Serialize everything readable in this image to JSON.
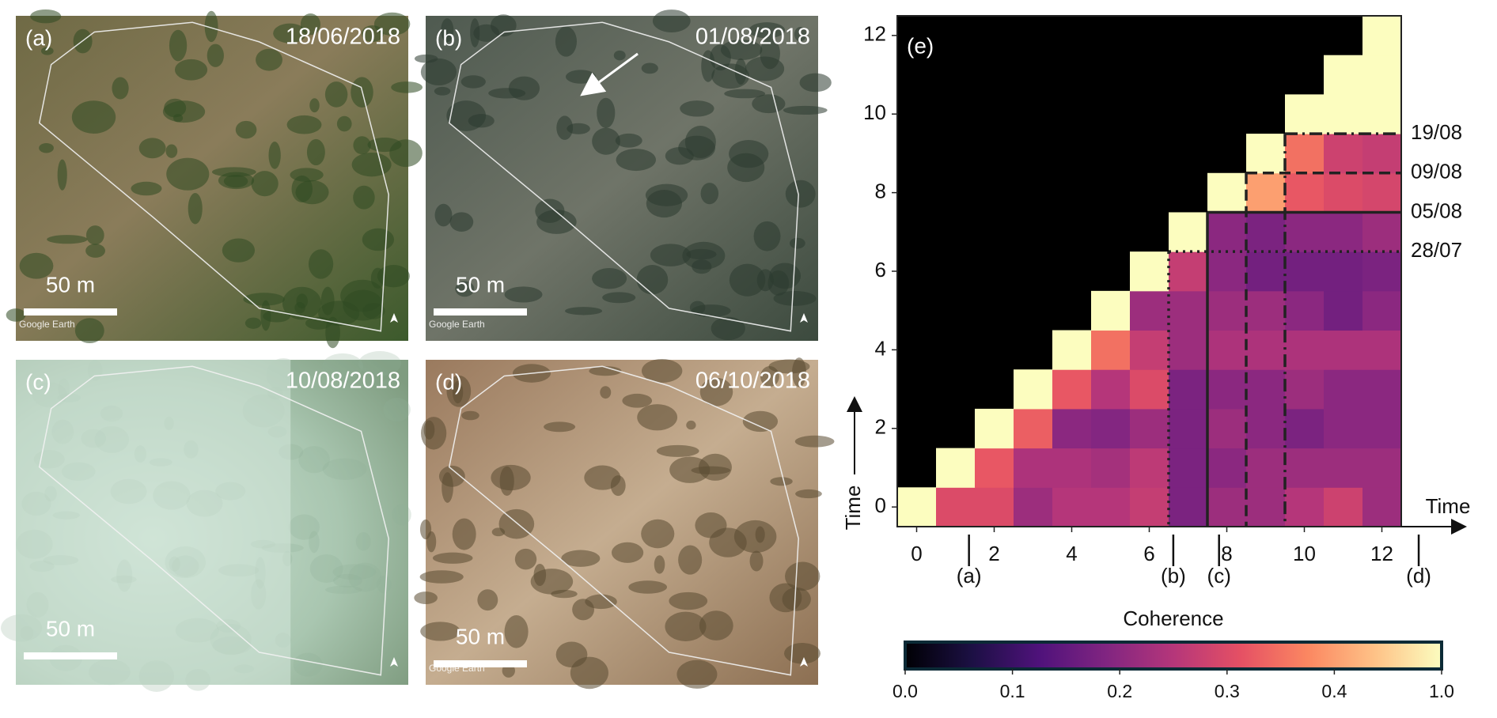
{
  "panels": [
    {
      "label": "(a)",
      "date": "18/06/2018",
      "scale": "50 m",
      "watermark": "Google Earth"
    },
    {
      "label": "(b)",
      "date": "01/08/2018",
      "scale": "50 m",
      "watermark": "Google Earth"
    },
    {
      "label": "(c)",
      "date": "10/08/2018",
      "scale": "50 m"
    },
    {
      "label": "(d)",
      "date": "06/10/2018",
      "scale": "50 m",
      "watermark": "Google Earth"
    }
  ],
  "chart_data": {
    "type": "heatmap",
    "title": "(e)",
    "x": [
      0,
      1,
      2,
      3,
      4,
      5,
      6,
      7,
      8,
      9,
      10,
      11,
      12
    ],
    "y": [
      0,
      1,
      2,
      3,
      4,
      5,
      6,
      7,
      8,
      9,
      10,
      11,
      12
    ],
    "values": [
      [
        1.0,
        0.3,
        0.3,
        0.22,
        0.25,
        0.25,
        0.27,
        0.18,
        0.22,
        0.22,
        0.25,
        0.28,
        0.22
      ],
      [
        null,
        1.0,
        0.32,
        0.24,
        0.24,
        0.23,
        0.26,
        0.18,
        0.2,
        0.22,
        0.22,
        0.22,
        0.22
      ],
      [
        null,
        null,
        1.0,
        0.33,
        0.2,
        0.19,
        0.22,
        0.18,
        0.22,
        0.2,
        0.18,
        0.2,
        0.2
      ],
      [
        null,
        null,
        null,
        1.0,
        0.32,
        0.25,
        0.3,
        0.18,
        0.2,
        0.2,
        0.22,
        0.2,
        0.2
      ],
      [
        null,
        null,
        null,
        null,
        1.0,
        0.35,
        0.27,
        0.22,
        0.24,
        0.24,
        0.24,
        0.24,
        0.24
      ],
      [
        null,
        null,
        null,
        null,
        null,
        1.0,
        0.22,
        0.22,
        0.22,
        0.22,
        0.2,
        0.17,
        0.2
      ],
      [
        null,
        null,
        null,
        null,
        null,
        null,
        1.0,
        0.27,
        0.2,
        0.17,
        0.17,
        0.17,
        0.18
      ],
      [
        null,
        null,
        null,
        null,
        null,
        null,
        null,
        1.0,
        0.2,
        0.18,
        0.2,
        0.2,
        0.22
      ],
      [
        null,
        null,
        null,
        null,
        null,
        null,
        null,
        null,
        1.0,
        0.4,
        0.32,
        0.3,
        0.29
      ],
      [
        null,
        null,
        null,
        null,
        null,
        null,
        null,
        null,
        null,
        1.0,
        0.35,
        0.28,
        0.27
      ],
      [
        null,
        null,
        null,
        null,
        null,
        null,
        null,
        null,
        null,
        null,
        1.0,
        1.0,
        1.0
      ],
      [
        null,
        null,
        null,
        null,
        null,
        null,
        null,
        null,
        null,
        null,
        null,
        1.0,
        1.0
      ],
      [
        null,
        null,
        null,
        null,
        null,
        null,
        null,
        null,
        null,
        null,
        null,
        null,
        1.0
      ]
    ],
    "xlim": [
      -0.5,
      12.5
    ],
    "ylim": [
      -0.5,
      12.5
    ],
    "xticks": [
      0,
      2,
      4,
      6,
      8,
      10,
      12
    ],
    "yticks": [
      0,
      2,
      4,
      6,
      8,
      10,
      12
    ],
    "xlabel": "Time",
    "ylabel": "Time",
    "colorbar_label": "Coherence",
    "colorbar_ticks": [
      0,
      0.1,
      0.2,
      0.3,
      0.4,
      {
        "value": 1,
        "label": "1.0"
      }
    ],
    "colorbar_tick_labels": [
      "0.0",
      "0.1",
      "0.2",
      "0.3",
      "0.4",
      "1.0"
    ],
    "colormap": "magma",
    "guides": [
      {
        "at": 6.5,
        "label": "28/07",
        "style": "dotted"
      },
      {
        "at": 7.5,
        "label": "05/08",
        "style": "solid"
      },
      {
        "at": 8.5,
        "label": "09/08",
        "style": "dashed"
      },
      {
        "at": 9.5,
        "label": "19/08",
        "style": "dashdot"
      }
    ],
    "events": [
      {
        "label": "(a)",
        "x": 1.35
      },
      {
        "label": "(b)",
        "x": 6.62
      },
      {
        "label": "(c)",
        "x": 7.8
      },
      {
        "label": "(d)",
        "x": 12.95
      }
    ]
  }
}
